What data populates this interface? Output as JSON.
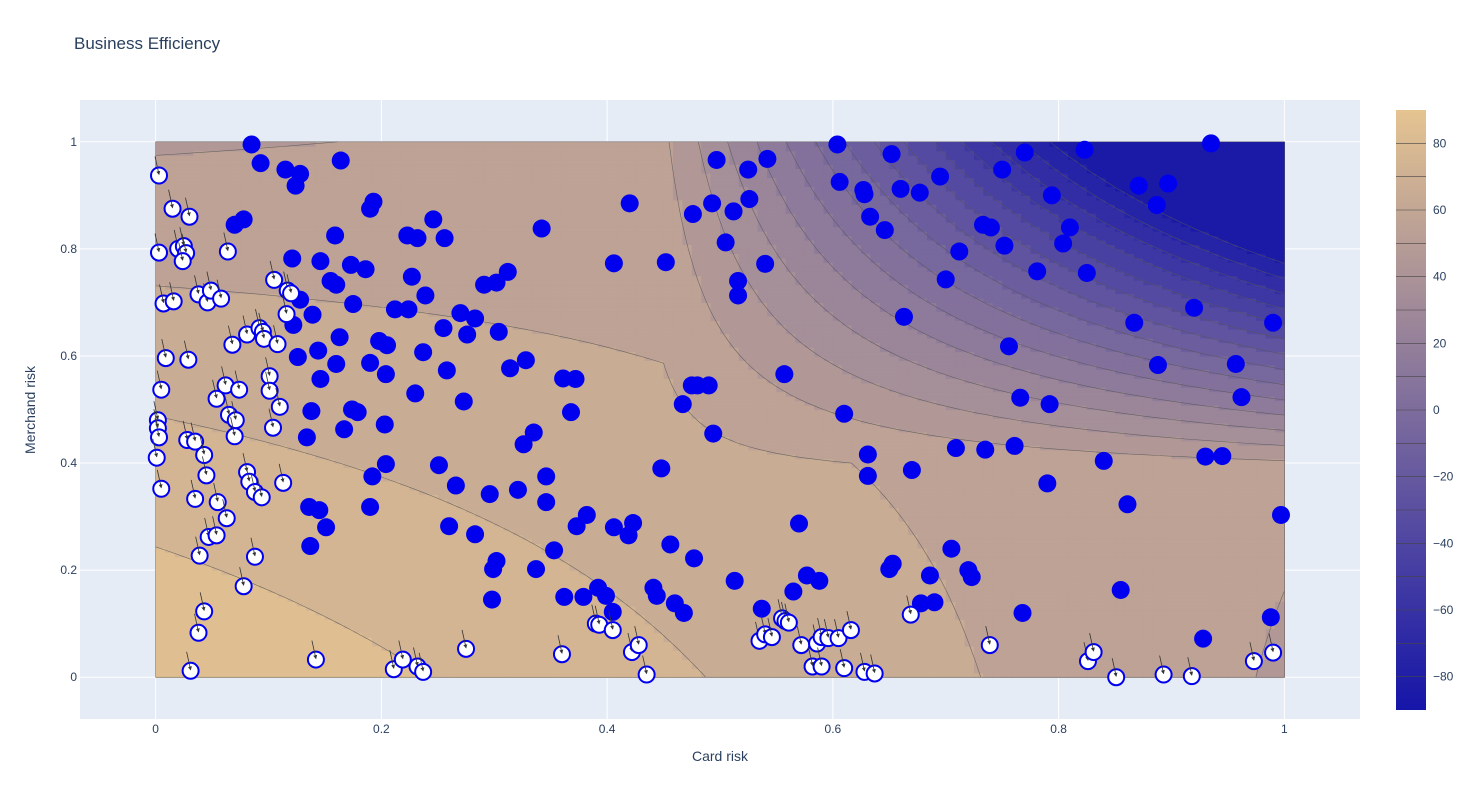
{
  "chart_data": {
    "type": "scatter",
    "title": "Business Efficiency",
    "xlabel": "Card risk",
    "ylabel": "Merchand risk",
    "xlim": [
      -0.067,
      1.067
    ],
    "ylim": [
      -0.078,
      1.078
    ],
    "x_ticks": [
      0,
      0.2,
      0.4,
      0.6,
      0.8,
      1
    ],
    "x_tick_labels": [
      "0",
      "0.2",
      "0.4",
      "0.6",
      "0.8",
      "1"
    ],
    "y_ticks": [
      0,
      0.2,
      0.4,
      0.6,
      0.8,
      1
    ],
    "y_tick_labels": [
      "0",
      "0.2",
      "0.4",
      "0.6",
      "0.8",
      "1"
    ],
    "grid": true,
    "colors": {
      "plot_bg": "#e5ecf6",
      "grid": "#ffffff",
      "marker": "#0000ee",
      "marker_open_fill": "#ffffff",
      "colorscale_low": "#1515a8",
      "colorscale_high": "#e5c491",
      "contour_line": "#555555"
    },
    "colorbar": {
      "range": [
        -90,
        90
      ],
      "ticks": [
        -80,
        -60,
        -40,
        -20,
        0,
        20,
        40,
        60,
        80
      ],
      "tick_labels": [
        "−80",
        "−60",
        "−40",
        "−20",
        "0",
        "20",
        "40",
        "60",
        "80"
      ]
    },
    "contour": {
      "type": "contour",
      "levels": [
        -80,
        -70,
        -60,
        -50,
        -40,
        -30,
        -20,
        -10,
        0,
        10,
        20,
        30,
        40,
        50,
        60,
        70,
        80
      ],
      "x_range": [
        0,
        1
      ],
      "y_range": [
        0,
        1
      ]
    },
    "series": [
      {
        "marker": "filled",
        "points": [
          [
            0.085,
            0.995
          ],
          [
            0.093,
            0.96
          ],
          [
            0.115,
            0.948
          ],
          [
            0.128,
            0.94
          ],
          [
            0.124,
            0.918
          ],
          [
            0.164,
            0.965
          ],
          [
            0.19,
            0.875
          ],
          [
            0.193,
            0.888
          ],
          [
            0.223,
            0.825
          ],
          [
            0.232,
            0.82
          ],
          [
            0.256,
            0.82
          ],
          [
            0.246,
            0.855
          ],
          [
            0.07,
            0.845
          ],
          [
            0.078,
            0.855
          ],
          [
            0.121,
            0.782
          ],
          [
            0.146,
            0.777
          ],
          [
            0.159,
            0.825
          ],
          [
            0.173,
            0.77
          ],
          [
            0.186,
            0.762
          ],
          [
            0.155,
            0.74
          ],
          [
            0.16,
            0.733
          ],
          [
            0.175,
            0.697
          ],
          [
            0.227,
            0.748
          ],
          [
            0.239,
            0.713
          ],
          [
            0.212,
            0.687
          ],
          [
            0.224,
            0.687
          ],
          [
            0.128,
            0.705
          ],
          [
            0.139,
            0.677
          ],
          [
            0.122,
            0.658
          ],
          [
            0.126,
            0.598
          ],
          [
            0.144,
            0.61
          ],
          [
            0.146,
            0.557
          ],
          [
            0.16,
            0.585
          ],
          [
            0.163,
            0.635
          ],
          [
            0.19,
            0.587
          ],
          [
            0.198,
            0.628
          ],
          [
            0.205,
            0.62
          ],
          [
            0.204,
            0.566
          ],
          [
            0.237,
            0.607
          ],
          [
            0.255,
            0.652
          ],
          [
            0.27,
            0.68
          ],
          [
            0.283,
            0.67
          ],
          [
            0.276,
            0.64
          ],
          [
            0.291,
            0.733
          ],
          [
            0.302,
            0.737
          ],
          [
            0.312,
            0.757
          ],
          [
            0.304,
            0.645
          ],
          [
            0.342,
            0.838
          ],
          [
            0.328,
            0.592
          ],
          [
            0.314,
            0.577
          ],
          [
            0.258,
            0.573
          ],
          [
            0.23,
            0.53
          ],
          [
            0.273,
            0.515
          ],
          [
            0.138,
            0.497
          ],
          [
            0.134,
            0.448
          ],
          [
            0.167,
            0.463
          ],
          [
            0.174,
            0.5
          ],
          [
            0.179,
            0.495
          ],
          [
            0.203,
            0.472
          ],
          [
            0.204,
            0.398
          ],
          [
            0.192,
            0.375
          ],
          [
            0.136,
            0.318
          ],
          [
            0.145,
            0.312
          ],
          [
            0.151,
            0.28
          ],
          [
            0.137,
            0.245
          ],
          [
            0.19,
            0.318
          ],
          [
            0.251,
            0.396
          ],
          [
            0.266,
            0.358
          ],
          [
            0.26,
            0.282
          ],
          [
            0.283,
            0.267
          ],
          [
            0.296,
            0.342
          ],
          [
            0.298,
            0.145
          ],
          [
            0.299,
            0.202
          ],
          [
            0.302,
            0.217
          ],
          [
            0.321,
            0.35
          ],
          [
            0.326,
            0.435
          ],
          [
            0.335,
            0.457
          ],
          [
            0.337,
            0.202
          ],
          [
            0.346,
            0.375
          ],
          [
            0.346,
            0.327
          ],
          [
            0.353,
            0.237
          ],
          [
            0.361,
            0.558
          ],
          [
            0.372,
            0.557
          ],
          [
            0.368,
            0.495
          ],
          [
            0.373,
            0.282
          ],
          [
            0.382,
            0.303
          ],
          [
            0.362,
            0.15
          ],
          [
            0.379,
            0.15
          ],
          [
            0.392,
            0.167
          ],
          [
            0.399,
            0.152
          ],
          [
            0.405,
            0.122
          ],
          [
            0.406,
            0.28
          ],
          [
            0.419,
            0.265
          ],
          [
            0.423,
            0.288
          ],
          [
            0.406,
            0.773
          ],
          [
            0.42,
            0.885
          ],
          [
            0.441,
            0.167
          ],
          [
            0.444,
            0.152
          ],
          [
            0.448,
            0.39
          ],
          [
            0.452,
            0.775
          ],
          [
            0.456,
            0.248
          ],
          [
            0.46,
            0.138
          ],
          [
            0.468,
            0.12
          ],
          [
            0.467,
            0.51
          ],
          [
            0.475,
            0.545
          ],
          [
            0.48,
            0.545
          ],
          [
            0.49,
            0.545
          ],
          [
            0.477,
            0.222
          ],
          [
            0.476,
            0.865
          ],
          [
            0.493,
            0.885
          ],
          [
            0.494,
            0.455
          ],
          [
            0.497,
            0.966
          ],
          [
            0.505,
            0.812
          ],
          [
            0.512,
            0.87
          ],
          [
            0.513,
            0.18
          ],
          [
            0.516,
            0.74
          ],
          [
            0.516,
            0.713
          ],
          [
            0.525,
            0.948
          ],
          [
            0.526,
            0.893
          ],
          [
            0.537,
            0.128
          ],
          [
            0.54,
            0.772
          ],
          [
            0.542,
            0.968
          ],
          [
            0.557,
            0.566
          ],
          [
            0.565,
            0.16
          ],
          [
            0.57,
            0.287
          ],
          [
            0.577,
            0.19
          ],
          [
            0.588,
            0.18
          ],
          [
            0.604,
            0.995
          ],
          [
            0.606,
            0.925
          ],
          [
            0.61,
            0.492
          ],
          [
            0.627,
            0.91
          ],
          [
            0.628,
            0.902
          ],
          [
            0.633,
            0.86
          ],
          [
            0.646,
            0.835
          ],
          [
            0.631,
            0.416
          ],
          [
            0.631,
            0.376
          ],
          [
            0.65,
            0.202
          ],
          [
            0.653,
            0.212
          ],
          [
            0.652,
            0.977
          ],
          [
            0.66,
            0.912
          ],
          [
            0.663,
            0.673
          ],
          [
            0.67,
            0.387
          ],
          [
            0.677,
            0.905
          ],
          [
            0.678,
            0.138
          ],
          [
            0.686,
            0.19
          ],
          [
            0.69,
            0.14
          ],
          [
            0.695,
            0.935
          ],
          [
            0.7,
            0.743
          ],
          [
            0.705,
            0.24
          ],
          [
            0.709,
            0.428
          ],
          [
            0.712,
            0.795
          ],
          [
            0.72,
            0.2
          ],
          [
            0.723,
            0.187
          ],
          [
            0.733,
            0.845
          ],
          [
            0.735,
            0.425
          ],
          [
            0.74,
            0.84
          ],
          [
            0.75,
            0.948
          ],
          [
            0.752,
            0.806
          ],
          [
            0.756,
            0.618
          ],
          [
            0.761,
            0.432
          ],
          [
            0.766,
            0.522
          ],
          [
            0.768,
            0.12
          ],
          [
            0.77,
            0.98
          ],
          [
            0.781,
            0.758
          ],
          [
            0.79,
            0.362
          ],
          [
            0.792,
            0.51
          ],
          [
            0.794,
            0.9
          ],
          [
            0.804,
            0.81
          ],
          [
            0.81,
            0.84
          ],
          [
            0.823,
            0.985
          ],
          [
            0.825,
            0.755
          ],
          [
            0.84,
            0.404
          ],
          [
            0.855,
            0.163
          ],
          [
            0.861,
            0.323
          ],
          [
            0.867,
            0.662
          ],
          [
            0.871,
            0.918
          ],
          [
            0.887,
            0.882
          ],
          [
            0.888,
            0.583
          ],
          [
            0.897,
            0.922
          ],
          [
            0.92,
            0.69
          ],
          [
            0.928,
            0.072
          ],
          [
            0.93,
            0.412
          ],
          [
            0.945,
            0.413
          ],
          [
            0.935,
            0.997
          ],
          [
            0.957,
            0.585
          ],
          [
            0.962,
            0.523
          ],
          [
            0.988,
            0.112
          ],
          [
            0.99,
            0.662
          ],
          [
            0.997,
            0.303
          ]
        ]
      },
      {
        "marker": "open",
        "points": [
          [
            0.003,
            0.937
          ],
          [
            0.015,
            0.875
          ],
          [
            0.03,
            0.86
          ],
          [
            0.003,
            0.793
          ],
          [
            0.02,
            0.8
          ],
          [
            0.025,
            0.805
          ],
          [
            0.027,
            0.792
          ],
          [
            0.024,
            0.777
          ],
          [
            0.064,
            0.795
          ],
          [
            0.007,
            0.698
          ],
          [
            0.016,
            0.702
          ],
          [
            0.038,
            0.715
          ],
          [
            0.046,
            0.7
          ],
          [
            0.049,
            0.722
          ],
          [
            0.058,
            0.707
          ],
          [
            0.105,
            0.742
          ],
          [
            0.117,
            0.722
          ],
          [
            0.12,
            0.717
          ],
          [
            0.116,
            0.678
          ],
          [
            0.068,
            0.621
          ],
          [
            0.081,
            0.64
          ],
          [
            0.092,
            0.652
          ],
          [
            0.095,
            0.645
          ],
          [
            0.096,
            0.632
          ],
          [
            0.108,
            0.622
          ],
          [
            0.009,
            0.596
          ],
          [
            0.029,
            0.593
          ],
          [
            0.005,
            0.537
          ],
          [
            0.062,
            0.545
          ],
          [
            0.074,
            0.537
          ],
          [
            0.054,
            0.52
          ],
          [
            0.065,
            0.49
          ],
          [
            0.071,
            0.48
          ],
          [
            0.07,
            0.45
          ],
          [
            0.101,
            0.562
          ],
          [
            0.101,
            0.535
          ],
          [
            0.11,
            0.505
          ],
          [
            0.104,
            0.466
          ],
          [
            0.002,
            0.48
          ],
          [
            0.002,
            0.465
          ],
          [
            0.003,
            0.448
          ],
          [
            0.028,
            0.443
          ],
          [
            0.035,
            0.44
          ],
          [
            0.043,
            0.415
          ],
          [
            0.001,
            0.41
          ],
          [
            0.045,
            0.377
          ],
          [
            0.081,
            0.383
          ],
          [
            0.083,
            0.365
          ],
          [
            0.088,
            0.346
          ],
          [
            0.094,
            0.336
          ],
          [
            0.113,
            0.363
          ],
          [
            0.005,
            0.352
          ],
          [
            0.035,
            0.333
          ],
          [
            0.055,
            0.327
          ],
          [
            0.063,
            0.297
          ],
          [
            0.047,
            0.262
          ],
          [
            0.054,
            0.265
          ],
          [
            0.039,
            0.227
          ],
          [
            0.088,
            0.225
          ],
          [
            0.078,
            0.17
          ],
          [
            0.043,
            0.123
          ],
          [
            0.038,
            0.083
          ],
          [
            0.031,
            0.012
          ],
          [
            0.142,
            0.033
          ],
          [
            0.211,
            0.015
          ],
          [
            0.219,
            0.033
          ],
          [
            0.232,
            0.02
          ],
          [
            0.237,
            0.01
          ],
          [
            0.275,
            0.053
          ],
          [
            0.36,
            0.043
          ],
          [
            0.39,
            0.1
          ],
          [
            0.393,
            0.098
          ],
          [
            0.405,
            0.088
          ],
          [
            0.422,
            0.047
          ],
          [
            0.428,
            0.06
          ],
          [
            0.435,
            0.005
          ],
          [
            0.535,
            0.068
          ],
          [
            0.54,
            0.08
          ],
          [
            0.546,
            0.075
          ],
          [
            0.555,
            0.11
          ],
          [
            0.558,
            0.105
          ],
          [
            0.561,
            0.102
          ],
          [
            0.572,
            0.06
          ],
          [
            0.582,
            0.02
          ],
          [
            0.586,
            0.063
          ],
          [
            0.59,
            0.075
          ],
          [
            0.59,
            0.02
          ],
          [
            0.596,
            0.073
          ],
          [
            0.605,
            0.073
          ],
          [
            0.616,
            0.088
          ],
          [
            0.61,
            0.017
          ],
          [
            0.628,
            0.01
          ],
          [
            0.637,
            0.007
          ],
          [
            0.669,
            0.117
          ],
          [
            0.739,
            0.06
          ],
          [
            0.826,
            0.03
          ],
          [
            0.831,
            0.047
          ],
          [
            0.851,
            0.0
          ],
          [
            0.893,
            0.005
          ],
          [
            0.918,
            0.002
          ],
          [
            0.973,
            0.03
          ],
          [
            0.99,
            0.046
          ]
        ]
      }
    ]
  }
}
